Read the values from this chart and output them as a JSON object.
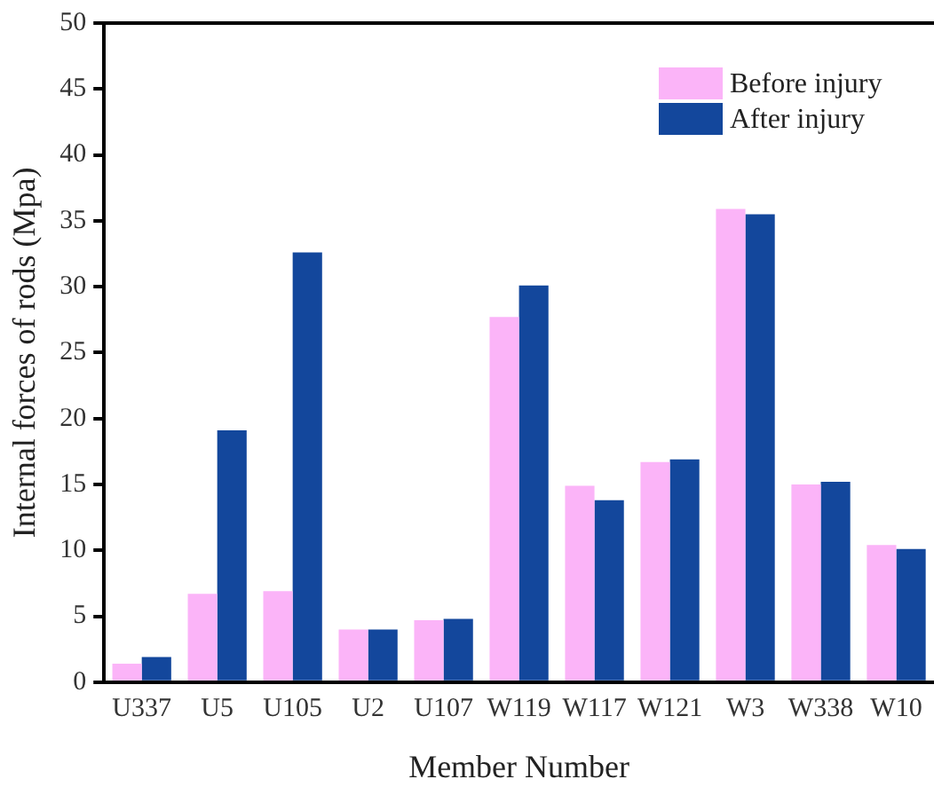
{
  "chart_data": {
    "type": "bar",
    "xlabel": "Member Number",
    "ylabel": "Internal forces of rods (Mpa)",
    "categories": [
      "U337",
      "U5",
      "U105",
      "U2",
      "U107",
      "W119",
      "W117",
      "W121",
      "W3",
      "W338",
      "W10"
    ],
    "series": [
      {
        "name": "Before injury",
        "color": "#fbb4f8",
        "values": [
          1.4,
          6.7,
          6.9,
          4.0,
          4.7,
          27.7,
          14.9,
          16.7,
          35.9,
          15.0,
          10.4
        ]
      },
      {
        "name": "After injury",
        "color": "#13479c",
        "values": [
          1.9,
          19.1,
          32.6,
          4.0,
          4.8,
          30.1,
          13.8,
          16.9,
          35.5,
          15.2,
          10.1
        ]
      }
    ],
    "ylim": [
      0,
      50
    ],
    "yticks": [
      0,
      5,
      10,
      15,
      20,
      25,
      30,
      35,
      40,
      45,
      50
    ],
    "grid": false,
    "legend": "top right"
  }
}
